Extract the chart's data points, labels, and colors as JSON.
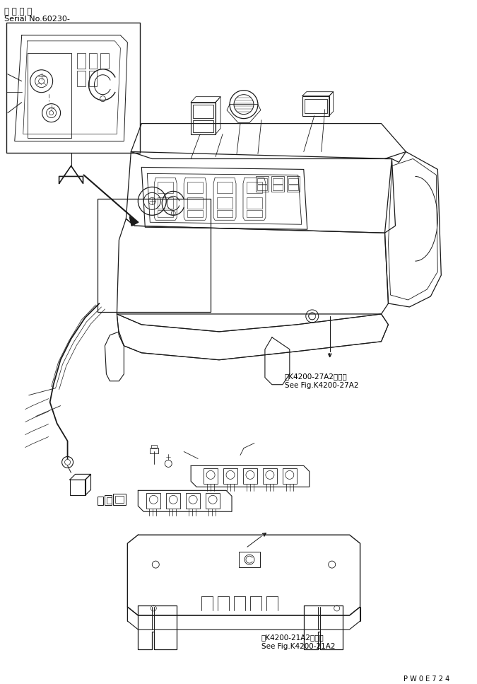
{
  "title_japanese": "適 用 号 機",
  "title_serial": "Serial No.60230-",
  "ref1_japanese": "第K4200-27A2図参照",
  "ref1_english": "See Fig.K4200-27A2",
  "ref2_japanese": "第K4200-21A2図参照",
  "ref2_english": "See Fig.K4200-21A2",
  "part_number": "P W 0 E 7 2 4",
  "bg_color": "#ffffff",
  "line_color": "#1a1a1a",
  "fig_width": 6.75,
  "fig_height": 9.67,
  "dpi": 100
}
